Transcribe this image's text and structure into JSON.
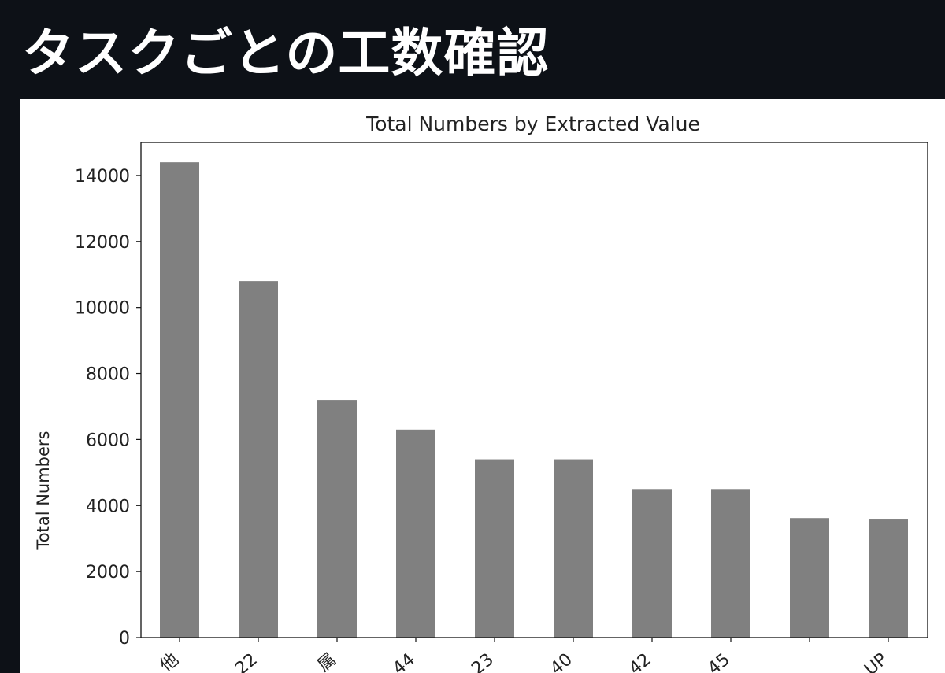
{
  "slide": {
    "title": "タスクごとの工数確認"
  },
  "chart_data": {
    "type": "bar",
    "title": "Total Numbers by Extracted Value",
    "xlabel": "",
    "ylabel": "Total Numbers",
    "ylim": [
      0,
      15000
    ],
    "yticks": [
      0,
      2000,
      4000,
      6000,
      8000,
      10000,
      12000,
      14000
    ],
    "categories": [
      "他",
      "22",
      "属",
      "44",
      "23",
      "40",
      "42",
      "45",
      "",
      "UP"
    ],
    "values": [
      14400,
      10800,
      7200,
      6300,
      5400,
      5400,
      4500,
      4500,
      3620,
      3600
    ],
    "bar_color": "#808080",
    "grid": false,
    "legend": "none"
  }
}
